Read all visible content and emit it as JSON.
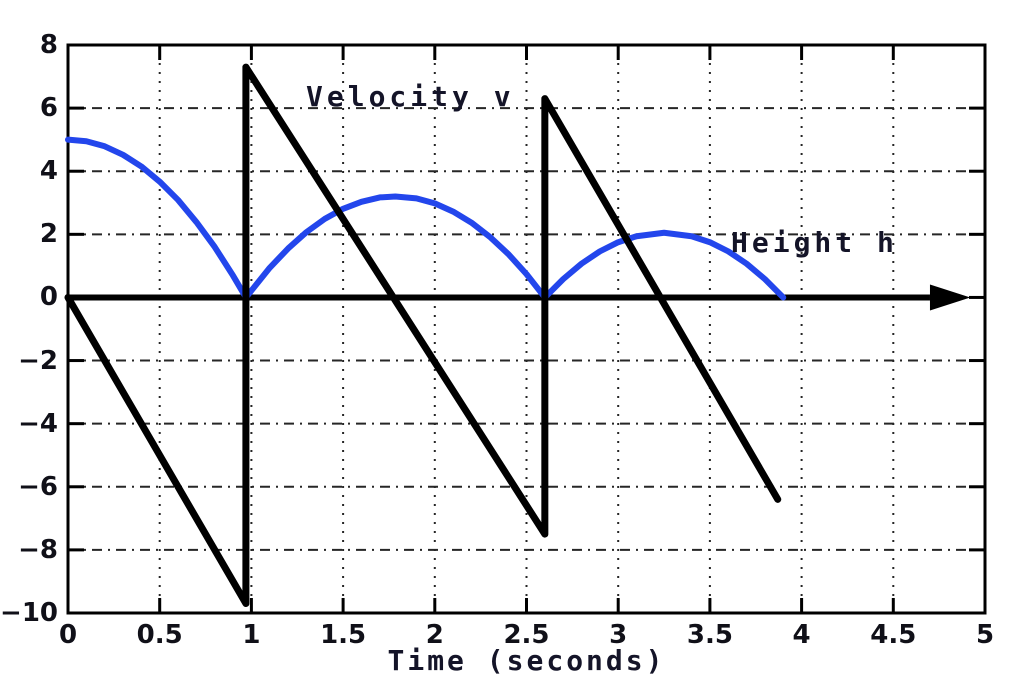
{
  "chart_data": {
    "type": "line",
    "title": "",
    "xlabel": "Time (seconds)",
    "ylabel": "",
    "xlim": [
      0,
      5
    ],
    "ylim": [
      -10,
      8
    ],
    "grid": true,
    "legend_position": "inline-annotations",
    "background": "#ffffff",
    "axis_color": "#000000",
    "grid_color": "#262626",
    "xticks": [
      0,
      0.5,
      1,
      1.5,
      2,
      2.5,
      3,
      3.5,
      4,
      4.5,
      5
    ],
    "xtick_labels": [
      "0",
      "0.5",
      "1",
      "1.5",
      "2",
      "2.5",
      "3",
      "3.5",
      "4",
      "4.5",
      "5"
    ],
    "yticks": [
      8,
      6,
      4,
      2,
      0,
      -2,
      -4,
      -6,
      -8,
      -10
    ],
    "ytick_labels": [
      "8",
      "6",
      "4",
      "2",
      "0",
      "−2",
      "−4",
      "−6",
      "−8",
      "−10"
    ],
    "x_axis_arrow": {
      "y": 0,
      "x_start": 0,
      "x_end": 4.7,
      "tip_x": 4.92
    },
    "series": [
      {
        "name": "Velocity v",
        "color": "#000000",
        "stroke_width": 7,
        "points": [
          [
            0,
            0
          ],
          [
            0.97,
            -9.7
          ],
          [
            0.97,
            7.3
          ],
          [
            2.6,
            -7.5
          ],
          [
            2.6,
            6.3
          ],
          [
            3.87,
            -6.4
          ]
        ]
      },
      {
        "name": "Height h",
        "color": "#2346ec",
        "stroke_width": 6,
        "points": [
          [
            0,
            5.0
          ],
          [
            0.1,
            4.95
          ],
          [
            0.2,
            4.79
          ],
          [
            0.3,
            4.52
          ],
          [
            0.4,
            4.15
          ],
          [
            0.5,
            3.67
          ],
          [
            0.6,
            3.09
          ],
          [
            0.7,
            2.39
          ],
          [
            0.8,
            1.6
          ],
          [
            0.9,
            0.69
          ],
          [
            0.97,
            0
          ],
          [
            1.1,
            0.94
          ],
          [
            1.2,
            1.55
          ],
          [
            1.3,
            2.07
          ],
          [
            1.4,
            2.49
          ],
          [
            1.5,
            2.81
          ],
          [
            1.6,
            3.03
          ],
          [
            1.7,
            3.17
          ],
          [
            1.785,
            3.2
          ],
          [
            1.9,
            3.14
          ],
          [
            2.0,
            2.98
          ],
          [
            2.1,
            2.72
          ],
          [
            2.2,
            2.37
          ],
          [
            2.3,
            1.92
          ],
          [
            2.4,
            1.38
          ],
          [
            2.5,
            0.74
          ],
          [
            2.6,
            0
          ],
          [
            2.7,
            0.58
          ],
          [
            2.8,
            1.07
          ],
          [
            2.9,
            1.46
          ],
          [
            3.0,
            1.75
          ],
          [
            3.1,
            1.94
          ],
          [
            3.25,
            2.05
          ],
          [
            3.4,
            1.94
          ],
          [
            3.5,
            1.75
          ],
          [
            3.6,
            1.46
          ],
          [
            3.7,
            1.07
          ],
          [
            3.8,
            0.58
          ],
          [
            3.9,
            0
          ]
        ]
      }
    ],
    "annotations": [
      {
        "text": "Velocity v",
        "x": 1.33,
        "y": 6.7
      },
      {
        "text": "Height h",
        "x": 3.65,
        "y": 2.1
      }
    ]
  }
}
